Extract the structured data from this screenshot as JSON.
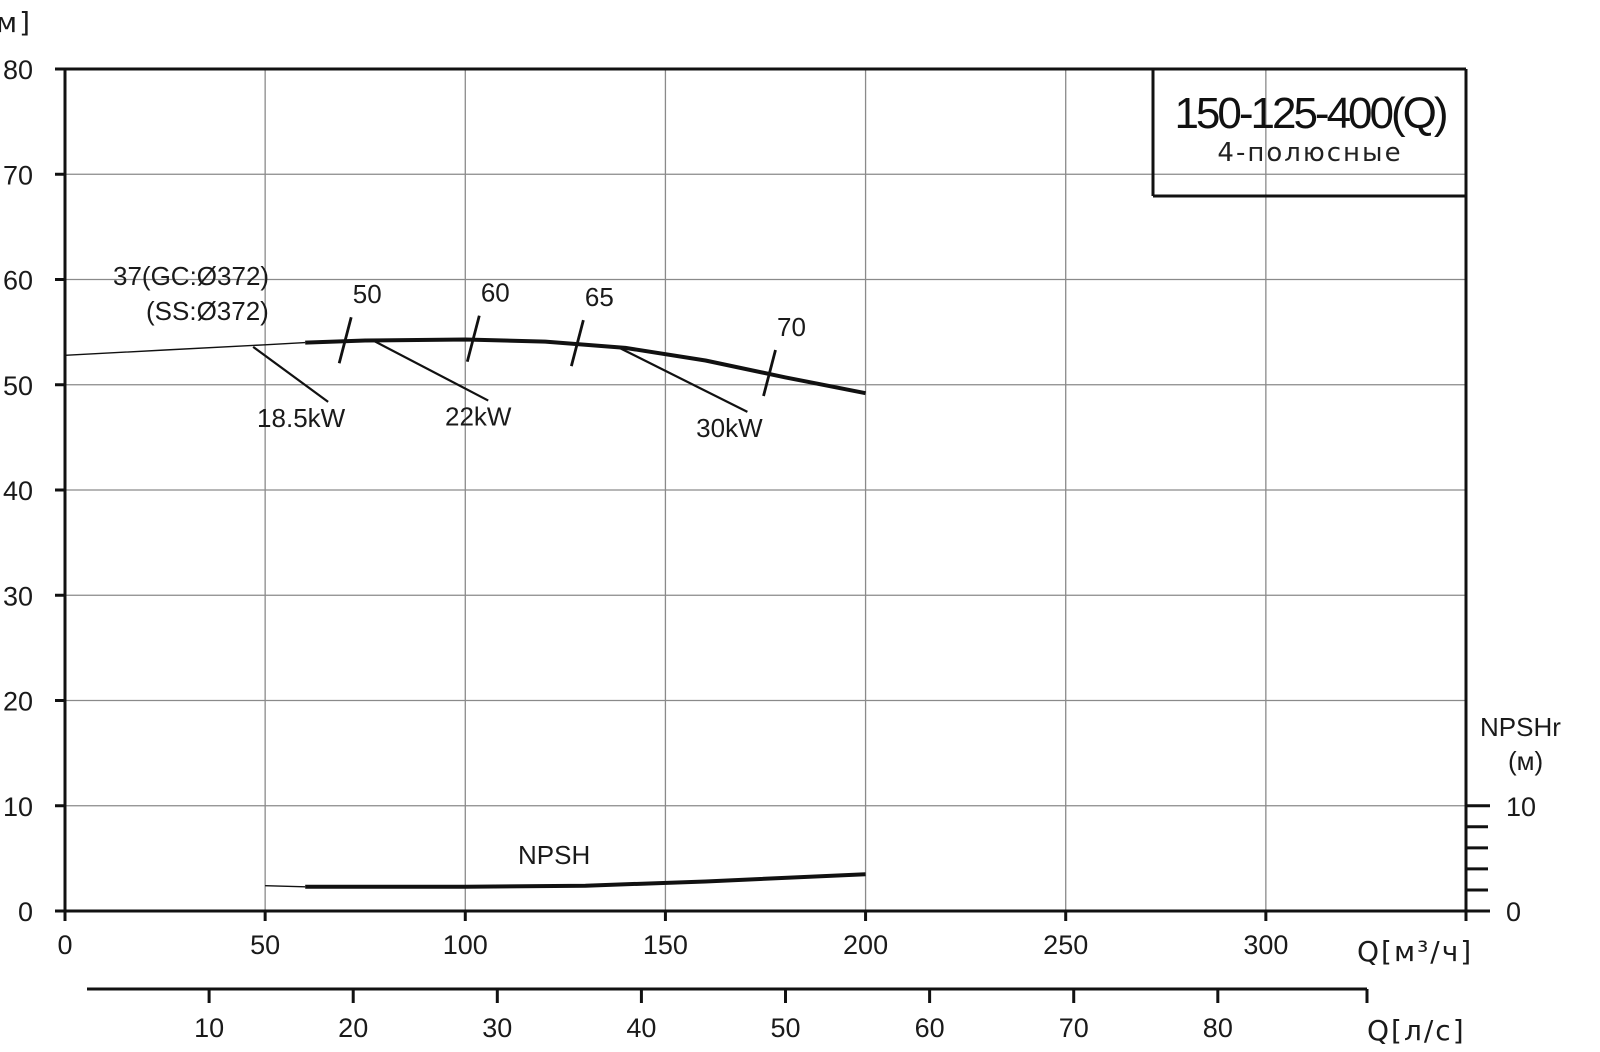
{
  "chart_data": {
    "type": "line",
    "title": "150-125-400(Q)",
    "subtitle": "4-полюсные",
    "xlabel": "Q[м³/ч]",
    "x2label": "Q[л/с]",
    "ylabel": "м]",
    "y2label_line1": "NPSHr",
    "y2label_line2": "(м)",
    "xlim": [
      0,
      350
    ],
    "ylim": [
      0,
      80
    ],
    "x_ticks": [
      0,
      50,
      100,
      150,
      200,
      250,
      300
    ],
    "x2_ticks": [
      10,
      20,
      30,
      40,
      50,
      60,
      70,
      80
    ],
    "y_ticks": [
      0,
      10,
      20,
      30,
      40,
      50,
      60,
      70,
      80
    ],
    "y2_ticks": [
      0,
      10
    ],
    "grid": true,
    "series": [
      {
        "name": "37(GC:Ø372)",
        "role": "head",
        "color": "#111111",
        "x": [
          0,
          25,
          50,
          60,
          75,
          100,
          120,
          140,
          160,
          180,
          200
        ],
        "y": [
          52.8,
          53.3,
          53.8,
          54.0,
          54.2,
          54.3,
          54.1,
          53.5,
          52.3,
          50.7,
          49.2
        ]
      },
      {
        "name": "NPSH",
        "role": "npsh",
        "color": "#111111",
        "x": [
          50,
          60,
          100,
          130,
          160,
          200
        ],
        "y": [
          2.4,
          2.3,
          2.3,
          2.4,
          2.8,
          3.5
        ]
      }
    ],
    "annotations": {
      "curve_label_1": "37(GC:Ø372)",
      "curve_label_2": "(SS:Ø372)",
      "power_labels": [
        {
          "text": "18.5kW",
          "x": 47,
          "y": 53.6
        },
        {
          "text": "22kW",
          "x": 77,
          "y": 54.2
        },
        {
          "text": "30kW",
          "x": 138,
          "y": 53.6
        }
      ],
      "efficiency_marks": [
        {
          "text": "50",
          "x": 70
        },
        {
          "text": "60",
          "x": 102
        },
        {
          "text": "65",
          "x": 128
        },
        {
          "text": "70",
          "x": 176
        }
      ],
      "npsh_label": "NPSH"
    }
  }
}
